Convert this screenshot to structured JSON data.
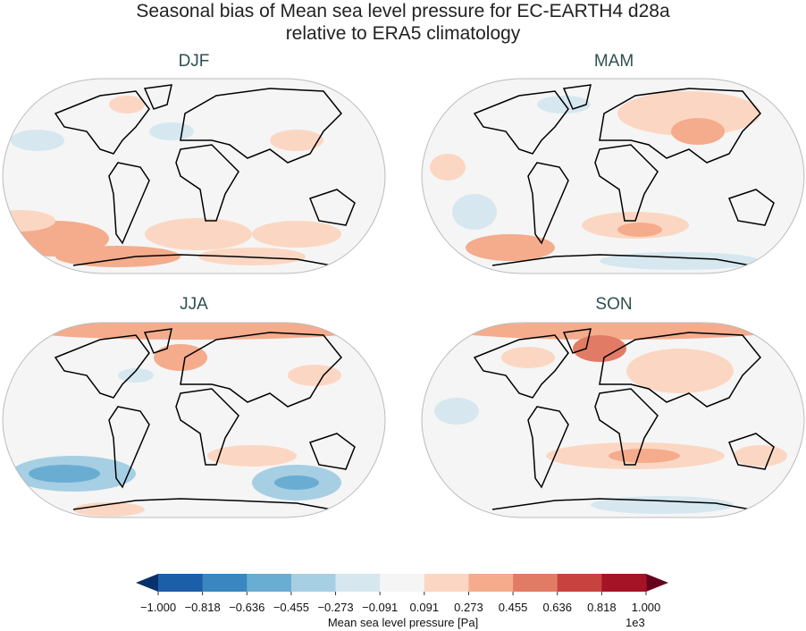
{
  "title": [
    "Seasonal bias of Mean sea level pressure for EC-EARTH4 d28a",
    "relative to ERA5 climatology"
  ],
  "panels": [
    {
      "season": "DJF",
      "blobs": [
        [
          40,
          70,
          30,
          12,
          "#d6e7f0"
        ],
        [
          190,
          60,
          25,
          10,
          "#d6e7f0"
        ],
        [
          140,
          30,
          20,
          10,
          "#fbd7c3"
        ],
        [
          330,
          70,
          30,
          12,
          "#fbd7c3"
        ],
        [
          60,
          180,
          60,
          20,
          "#f4ac8c"
        ],
        [
          220,
          175,
          60,
          18,
          "#fbd7c3"
        ],
        [
          330,
          175,
          50,
          15,
          "#fbd7c3"
        ],
        [
          130,
          200,
          70,
          12,
          "#f4ac8c"
        ],
        [
          280,
          200,
          60,
          10,
          "#fbd7c3"
        ],
        [
          20,
          160,
          40,
          12,
          "#fbd7c3"
        ]
      ]
    },
    {
      "season": "MAM",
      "blobs": [
        [
          300,
          40,
          80,
          25,
          "#fbd7c3"
        ],
        [
          310,
          60,
          30,
          15,
          "#f4ac8c"
        ],
        [
          60,
          150,
          25,
          20,
          "#d6e7f0"
        ],
        [
          100,
          190,
          50,
          15,
          "#f4ac8c"
        ],
        [
          240,
          165,
          60,
          15,
          "#fbd7c3"
        ],
        [
          245,
          170,
          25,
          8,
          "#f4ac8c"
        ],
        [
          290,
          205,
          90,
          10,
          "#d6e7f0"
        ],
        [
          160,
          30,
          30,
          10,
          "#d6e7f0"
        ],
        [
          30,
          100,
          20,
          15,
          "#fbd7c3"
        ]
      ]
    },
    {
      "season": "JJA",
      "blobs": [
        [
          215,
          10,
          190,
          10,
          "#f4ac8c"
        ],
        [
          200,
          40,
          30,
          15,
          "#f4ac8c"
        ],
        [
          80,
          170,
          70,
          20,
          "#a6cfe4"
        ],
        [
          70,
          170,
          40,
          10,
          "#6aadd2"
        ],
        [
          330,
          180,
          50,
          20,
          "#a6cfe4"
        ],
        [
          330,
          180,
          25,
          8,
          "#6aadd2"
        ],
        [
          280,
          150,
          50,
          12,
          "#fbd7c3"
        ],
        [
          150,
          60,
          20,
          8,
          "#d6e7f0"
        ],
        [
          350,
          60,
          30,
          12,
          "#fbd7c3"
        ],
        [
          120,
          210,
          40,
          8,
          "#fbd7c3"
        ]
      ]
    },
    {
      "season": "SON",
      "blobs": [
        [
          215,
          10,
          180,
          10,
          "#f4ac8c"
        ],
        [
          200,
          30,
          30,
          15,
          "#e27b65"
        ],
        [
          290,
          55,
          60,
          25,
          "#fbd7c3"
        ],
        [
          120,
          40,
          30,
          12,
          "#fbd7c3"
        ],
        [
          240,
          150,
          100,
          15,
          "#fbd7c3"
        ],
        [
          250,
          150,
          40,
          8,
          "#f4ac8c"
        ],
        [
          270,
          205,
          80,
          10,
          "#d6e7f0"
        ],
        [
          40,
          100,
          25,
          15,
          "#d6e7f0"
        ],
        [
          380,
          150,
          30,
          12,
          "#fbd7c3"
        ]
      ]
    }
  ],
  "colorbar": {
    "label": "Mean sea level pressure [Pa]",
    "exponent": "1e3",
    "ticks": [
      "−1.000",
      "−0.818",
      "−0.636",
      "−0.455",
      "−0.273",
      "−0.091",
      "0.091",
      "0.273",
      "0.455",
      "0.636",
      "0.818",
      "1.000"
    ],
    "colors": [
      "#1d5ea8",
      "#3a86bf",
      "#6aadd2",
      "#a6cfe4",
      "#d6e7f0",
      "#f5f5f5",
      "#fbd7c3",
      "#f4ac8c",
      "#e27b65",
      "#c8423f",
      "#a51426"
    ],
    "under": "#08306b",
    "over": "#67001f",
    "range": [
      -1000,
      1000
    ]
  }
}
